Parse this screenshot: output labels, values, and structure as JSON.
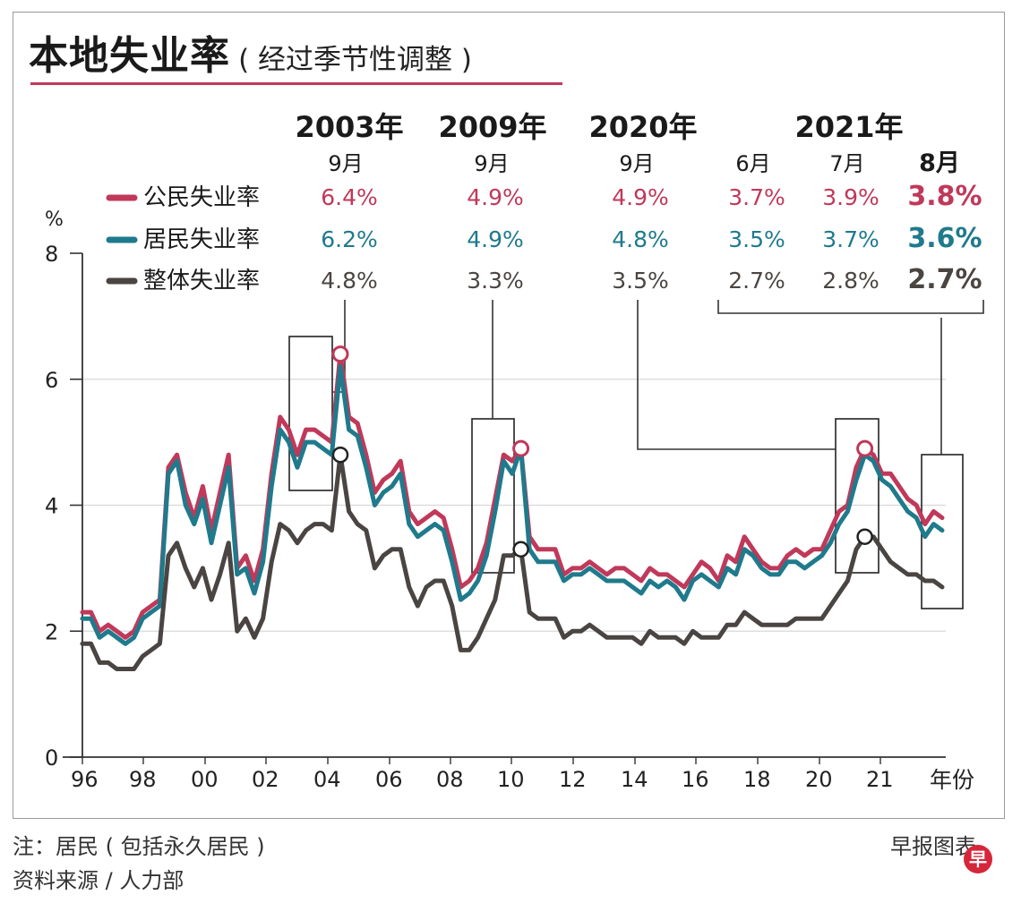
{
  "title": "本地失业率",
  "subtitle": "( 经过季节性调整 )",
  "footer": {
    "note": "注：居民 ( 包括永久居民 )",
    "source": "资料来源 / 人力部",
    "credit": "早报图表",
    "logo_text": "早"
  },
  "colors": {
    "citizen": "#c0395a",
    "resident": "#1f7a8c",
    "overall": "#4a4542",
    "grid": "#d8d8d8",
    "rule": "#c0395a"
  },
  "chart_data": {
    "type": "line",
    "ylabel": "%",
    "xlabel": "年份",
    "ylim": [
      0,
      8
    ],
    "y_ticks": [
      "0",
      "2",
      "4",
      "6",
      "8"
    ],
    "x_ticks": [
      "96",
      "98",
      "00",
      "02",
      "04",
      "06",
      "08",
      "10",
      "12",
      "14",
      "16",
      "18",
      "20",
      "21"
    ],
    "grid": true,
    "series": [
      {
        "name": "公民失业率",
        "color_key": "citizen",
        "values": [
          2.3,
          2.3,
          2.0,
          2.1,
          2.0,
          1.9,
          2.0,
          2.3,
          2.4,
          2.5,
          4.6,
          4.8,
          4.2,
          3.8,
          4.3,
          3.6,
          4.2,
          4.8,
          3.0,
          3.2,
          2.8,
          3.3,
          4.5,
          5.4,
          5.2,
          4.8,
          5.2,
          5.2,
          5.1,
          5.0,
          6.4,
          5.4,
          5.3,
          4.8,
          4.2,
          4.4,
          4.5,
          4.7,
          3.9,
          3.7,
          3.8,
          3.9,
          3.8,
          3.3,
          2.7,
          2.8,
          3.0,
          3.4,
          4.1,
          4.8,
          4.7,
          4.9,
          3.5,
          3.3,
          3.3,
          3.3,
          2.9,
          3.0,
          3.0,
          3.1,
          3.0,
          2.9,
          3.0,
          3.0,
          2.9,
          2.8,
          3.0,
          2.9,
          2.9,
          2.8,
          2.7,
          2.9,
          3.1,
          3.0,
          2.8,
          3.2,
          3.1,
          3.5,
          3.3,
          3.1,
          3.0,
          3.0,
          3.2,
          3.3,
          3.2,
          3.3,
          3.3,
          3.6,
          3.9,
          4.0,
          4.6,
          4.9,
          4.8,
          4.5,
          4.5,
          4.3,
          4.1,
          4.0,
          3.7,
          3.9,
          3.8
        ]
      },
      {
        "name": "居民失业率",
        "color_key": "resident",
        "values": [
          2.2,
          2.2,
          1.9,
          2.0,
          1.9,
          1.8,
          1.9,
          2.2,
          2.3,
          2.4,
          4.5,
          4.7,
          4.0,
          3.7,
          4.1,
          3.4,
          4.0,
          4.6,
          2.9,
          3.0,
          2.6,
          3.1,
          4.3,
          5.2,
          5.0,
          4.6,
          5.0,
          5.0,
          4.9,
          4.8,
          6.2,
          5.2,
          5.1,
          4.6,
          4.0,
          4.2,
          4.3,
          4.5,
          3.7,
          3.5,
          3.6,
          3.7,
          3.6,
          3.1,
          2.5,
          2.6,
          2.8,
          3.2,
          3.9,
          4.7,
          4.5,
          4.9,
          3.3,
          3.1,
          3.1,
          3.1,
          2.8,
          2.9,
          2.9,
          3.0,
          2.9,
          2.8,
          2.8,
          2.8,
          2.7,
          2.6,
          2.8,
          2.7,
          2.8,
          2.7,
          2.5,
          2.8,
          2.9,
          2.8,
          2.7,
          3.0,
          2.9,
          3.3,
          3.2,
          3.0,
          2.9,
          2.9,
          3.1,
          3.1,
          3.0,
          3.1,
          3.2,
          3.4,
          3.7,
          3.9,
          4.4,
          4.8,
          4.7,
          4.4,
          4.3,
          4.1,
          3.9,
          3.8,
          3.5,
          3.7,
          3.6
        ]
      },
      {
        "name": "整体失业率",
        "color_key": "overall",
        "values": [
          1.8,
          1.8,
          1.5,
          1.5,
          1.4,
          1.4,
          1.4,
          1.6,
          1.7,
          1.8,
          3.2,
          3.4,
          3.0,
          2.7,
          3.0,
          2.5,
          2.9,
          3.4,
          2.0,
          2.2,
          1.9,
          2.2,
          3.1,
          3.7,
          3.6,
          3.4,
          3.6,
          3.7,
          3.7,
          3.6,
          4.8,
          3.9,
          3.7,
          3.6,
          3.0,
          3.2,
          3.3,
          3.3,
          2.7,
          2.4,
          2.7,
          2.8,
          2.8,
          2.4,
          1.7,
          1.7,
          1.9,
          2.2,
          2.5,
          3.2,
          3.2,
          3.3,
          2.3,
          2.2,
          2.2,
          2.2,
          1.9,
          2.0,
          2.0,
          2.1,
          2.0,
          1.9,
          1.9,
          1.9,
          1.9,
          1.8,
          2.0,
          1.9,
          1.9,
          1.9,
          1.8,
          2.0,
          1.9,
          1.9,
          1.9,
          2.1,
          2.1,
          2.3,
          2.2,
          2.1,
          2.1,
          2.1,
          2.1,
          2.2,
          2.2,
          2.2,
          2.2,
          2.4,
          2.6,
          2.8,
          3.3,
          3.5,
          3.5,
          3.3,
          3.1,
          3.0,
          2.9,
          2.9,
          2.8,
          2.8,
          2.7
        ]
      }
    ],
    "table": {
      "years": [
        {
          "label": "2003年",
          "span": 1
        },
        {
          "label": "2009年",
          "span": 1
        },
        {
          "label": "2020年",
          "span": 1
        },
        {
          "label": "2021年",
          "span": 3
        }
      ],
      "months": [
        "9月",
        "9月",
        "9月",
        "6月",
        "7月",
        "8月"
      ],
      "rows": [
        {
          "name": "公民失业率",
          "color_key": "citizen",
          "values": [
            "6.4%",
            "4.9%",
            "4.9%",
            "3.7%",
            "3.9%",
            "3.8%"
          ]
        },
        {
          "name": "居民失业率",
          "color_key": "resident",
          "values": [
            "6.2%",
            "4.9%",
            "4.8%",
            "3.5%",
            "3.7%",
            "3.6%"
          ]
        },
        {
          "name": "整体失业率",
          "color_key": "overall",
          "values": [
            "4.8%",
            "3.3%",
            "3.5%",
            "2.7%",
            "2.8%",
            "2.7%"
          ]
        }
      ]
    },
    "highlights": [
      {
        "period": "2003年9月",
        "citizen": 6.4,
        "overall": 4.8
      },
      {
        "period": "2009年9月",
        "citizen": 4.9,
        "overall": 3.3
      },
      {
        "period": "2020年9月",
        "citizen": 4.9,
        "overall": 3.5
      }
    ]
  }
}
